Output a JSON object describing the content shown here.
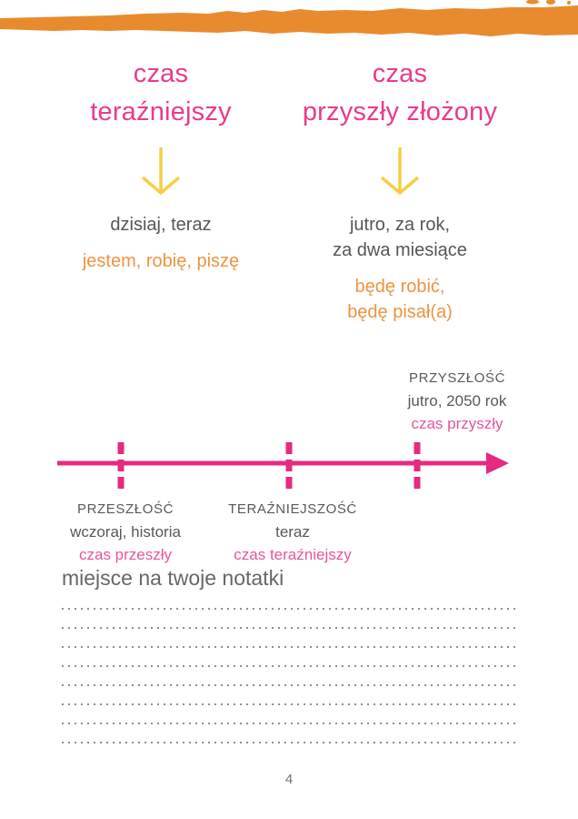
{
  "page": {
    "number": "4"
  },
  "colors": {
    "brush_orange": "#e88b2e",
    "heading_pink": "#ea3a8c",
    "timeline_pink": "#e62a80",
    "tense_pink": "#e8569a",
    "arrow_yellow": "#f7cf45",
    "body_gray": "#55565a",
    "example_orange": "#ef9340",
    "dots_gray": "#8f9092"
  },
  "columns": [
    {
      "heading_line1": "czas",
      "heading_line2": "teraźniejszy",
      "time_words": [
        "dzisiaj, teraz"
      ],
      "examples": [
        "jestem, robię, piszę"
      ]
    },
    {
      "heading_line1": "czas",
      "heading_line2": "przyszły złożony",
      "time_words": [
        "jutro, za rok,",
        "za dwa miesiące"
      ],
      "examples": [
        "będę robić,",
        "będę pisał(a)"
      ]
    }
  ],
  "timeline": {
    "past": {
      "title": "PRZESZŁOŚĆ",
      "subtitle": "wczoraj, historia",
      "tense": "czas przeszły"
    },
    "present": {
      "title": "TERAŹNIEJSZOŚĆ",
      "subtitle": "teraz",
      "tense": "czas teraźniejszy"
    },
    "future": {
      "title": "PRZYSZŁOŚĆ",
      "subtitle": "jutro, 2050 rok",
      "tense": "czas przyszły"
    }
  },
  "notes": {
    "heading": "miejsce na twoje notatki",
    "line_count": 8
  }
}
